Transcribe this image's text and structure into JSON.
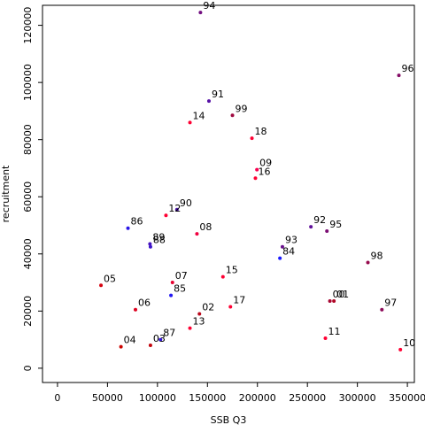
{
  "chart_data": {
    "type": "scatter",
    "xlabel": "SSB Q3",
    "ylabel": "recruitment",
    "xlim": [
      -15000,
      357000
    ],
    "ylim": [
      -5000,
      127000
    ],
    "grid": false,
    "x_ticks": [
      0,
      50000,
      100000,
      150000,
      200000,
      250000,
      300000,
      350000
    ],
    "y_ticks": [
      0,
      20000,
      40000,
      60000,
      80000,
      100000,
      120000
    ],
    "colors": {
      "early": "#1a1aff",
      "late": "#ff1a33",
      "axis": "#000000"
    },
    "points": [
      {
        "label": "86",
        "x": 70500,
        "y": 49000,
        "color": "#2a16e6"
      },
      {
        "label": "87",
        "x": 103000,
        "y": 10000,
        "color": "#3315d9"
      },
      {
        "label": "88",
        "x": 93000,
        "y": 42500,
        "color": "#3c14cc"
      },
      {
        "label": "89",
        "x": 92500,
        "y": 43500,
        "color": "#4513bf"
      },
      {
        "label": "90",
        "x": 119500,
        "y": 55500,
        "color": "#4e12b2"
      },
      {
        "label": "91",
        "x": 151500,
        "y": 93500,
        "color": "#5711a6"
      },
      {
        "label": "92",
        "x": 253500,
        "y": 49500,
        "color": "#601099"
      },
      {
        "label": "93",
        "x": 225000,
        "y": 42500,
        "color": "#690f8c"
      },
      {
        "label": "94",
        "x": 143000,
        "y": 124500,
        "color": "#720e80"
      },
      {
        "label": "95",
        "x": 269500,
        "y": 48000,
        "color": "#7b0d73"
      },
      {
        "label": "96",
        "x": 341500,
        "y": 102500,
        "color": "#840c66"
      },
      {
        "label": "97",
        "x": 324500,
        "y": 20500,
        "color": "#8d0b59"
      },
      {
        "label": "98",
        "x": 310500,
        "y": 37000,
        "color": "#960a4d"
      },
      {
        "label": "99",
        "x": 175000,
        "y": 88500,
        "color": "#9f0940"
      },
      {
        "label": "00",
        "x": 272500,
        "y": 23500,
        "color": "#a80833"
      },
      {
        "label": "01",
        "x": 276500,
        "y": 23500,
        "color": "#b10726"
      },
      {
        "label": "02",
        "x": 142000,
        "y": 19000,
        "color": "#ba061a"
      },
      {
        "label": "03",
        "x": 93000,
        "y": 8000,
        "color": "#c3050d"
      },
      {
        "label": "04",
        "x": 63500,
        "y": 7500,
        "color": "#cc0400"
      },
      {
        "label": "05",
        "x": 43500,
        "y": 29000,
        "color": "#d50310"
      },
      {
        "label": "06",
        "x": 78000,
        "y": 20500,
        "color": "#de0220"
      },
      {
        "label": "07",
        "x": 115000,
        "y": 30000,
        "color": "#e70130"
      },
      {
        "label": "08",
        "x": 139500,
        "y": 47000,
        "color": "#f00040"
      },
      {
        "label": "09",
        "x": 199500,
        "y": 69500,
        "color": "#f90050"
      },
      {
        "label": "10",
        "x": 343000,
        "y": 6500,
        "color": "#ff0033"
      },
      {
        "label": "11",
        "x": 268000,
        "y": 10500,
        "color": "#ff0033"
      },
      {
        "label": "12",
        "x": 108500,
        "y": 53500,
        "color": "#ff0033"
      },
      {
        "label": "13",
        "x": 132500,
        "y": 14000,
        "color": "#ff0033"
      },
      {
        "label": "14",
        "x": 132500,
        "y": 86000,
        "color": "#ff0033"
      },
      {
        "label": "15",
        "x": 165500,
        "y": 32000,
        "color": "#ff0033"
      },
      {
        "label": "16",
        "x": 198000,
        "y": 66500,
        "color": "#ff0033"
      },
      {
        "label": "17",
        "x": 173000,
        "y": 21500,
        "color": "#ff0033"
      },
      {
        "label": "18",
        "x": 194500,
        "y": 80500,
        "color": "#ff0033"
      },
      {
        "label": "84",
        "x": 222500,
        "y": 38500,
        "color": "#1a1aff"
      },
      {
        "label": "85",
        "x": 113500,
        "y": 25500,
        "color": "#2217f2"
      }
    ]
  }
}
